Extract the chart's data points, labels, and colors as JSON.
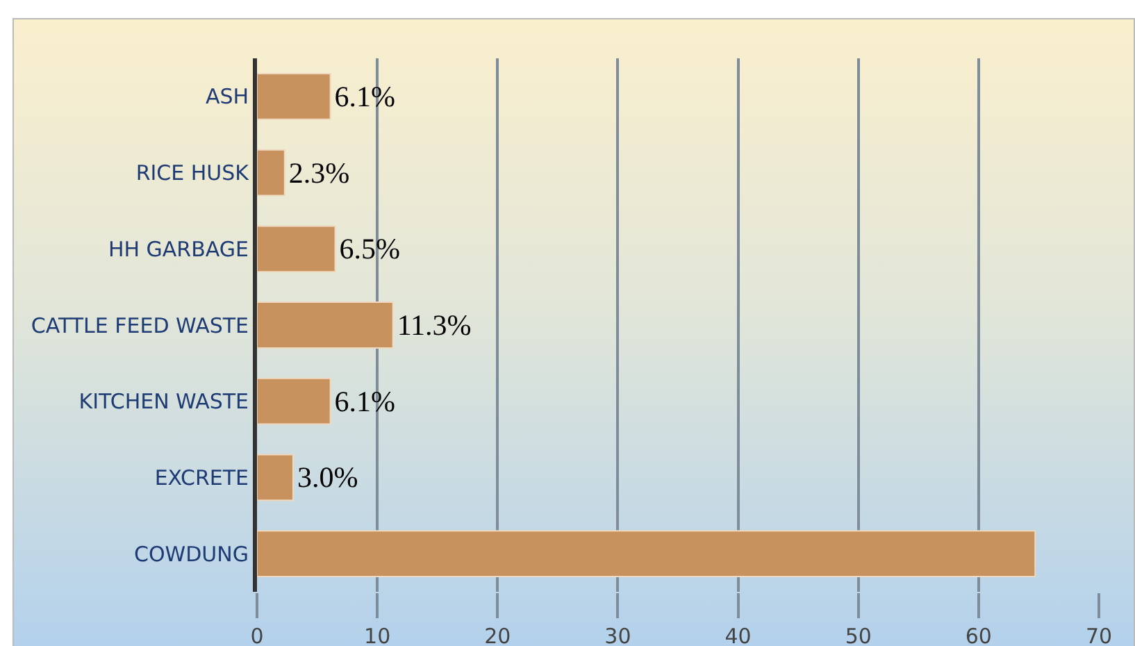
{
  "chart_data": {
    "type": "bar",
    "orientation": "horizontal",
    "categories": [
      "ASH",
      "RICE HUSK",
      "HH GARBAGE",
      "CATTLE FEED WASTE",
      "KITCHEN WASTE",
      "EXCRETE",
      "COWDUNG"
    ],
    "values": [
      6.1,
      2.3,
      6.5,
      11.3,
      6.1,
      3.0,
      64.7
    ],
    "value_labels": [
      "6.1%",
      "2.3%",
      "6.5%",
      "11.3%",
      "6.1%",
      "3.0%",
      null
    ],
    "color": "#c8925e",
    "xlim": [
      0,
      70
    ],
    "xticks": [
      0,
      10,
      20,
      30,
      40,
      50,
      60,
      70
    ],
    "grid": "x"
  }
}
